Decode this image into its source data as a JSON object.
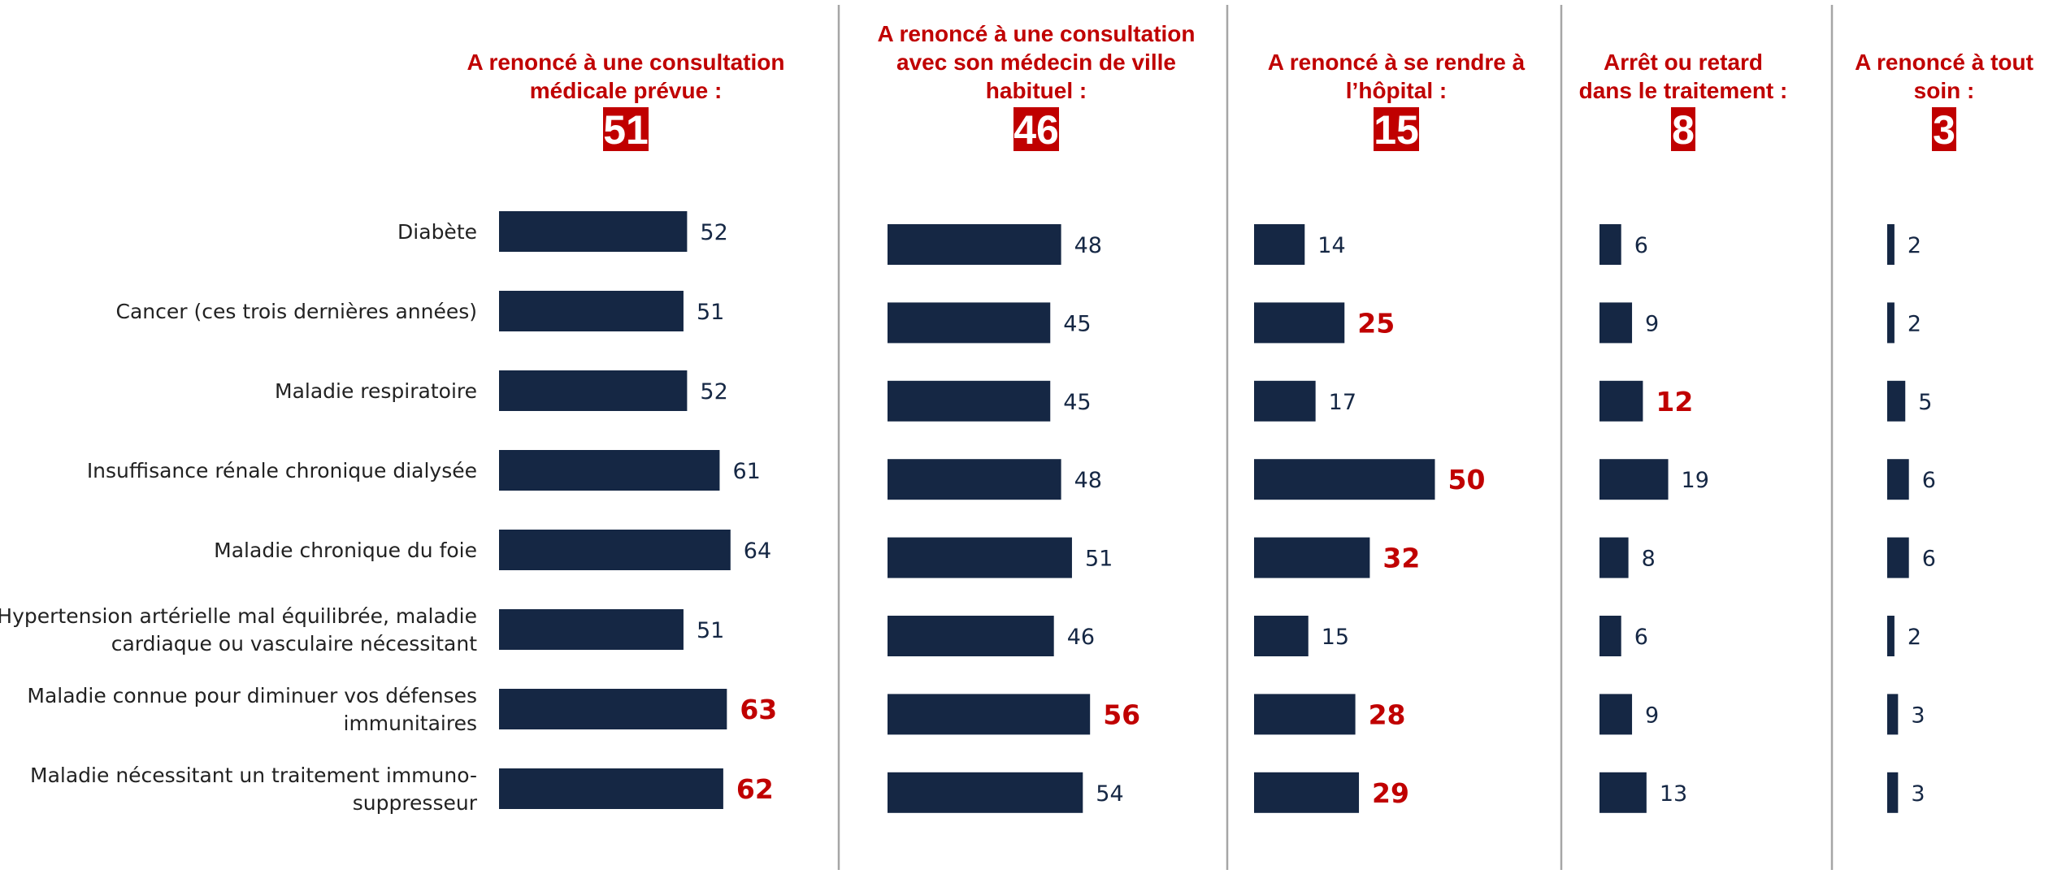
{
  "colors": {
    "bar": "#152744",
    "highlight": "#C00000",
    "value_text": "#152744",
    "category_text": "#222222",
    "divider": "#A6A6A6",
    "badge_text": "#FFFFFF"
  },
  "chart_data": {
    "type": "bar",
    "orientation": "horizontal",
    "categories": [
      [
        "Diabète"
      ],
      [
        "Cancer (ces trois dernières années)"
      ],
      [
        "Maladie respiratoire"
      ],
      [
        "Insuffisance rénale chronique dialysée"
      ],
      [
        "Maladie chronique du foie"
      ],
      [
        "Hypertension artérielle mal équilibrée, maladie",
        "cardiaque ou vasculaire nécessitant"
      ],
      [
        "Maladie connue pour diminuer vos défenses",
        "immunitaires"
      ],
      [
        "Maladie nécessitant un traitement immuno-",
        "suppresseur"
      ]
    ],
    "series": [
      {
        "title_lines": [
          "A renoncé à une consultation",
          "médicale prévue :"
        ],
        "total": "51",
        "values": [
          52,
          51,
          52,
          61,
          64,
          51,
          63,
          62
        ],
        "highlighted": [
          false,
          false,
          false,
          false,
          false,
          false,
          true,
          true
        ]
      },
      {
        "title_lines": [
          "A renoncé à une consultation",
          "avec son médecin de ville",
          "habituel :"
        ],
        "total": "46",
        "values": [
          48,
          45,
          45,
          48,
          51,
          46,
          56,
          54
        ],
        "highlighted": [
          false,
          false,
          false,
          false,
          false,
          false,
          true,
          false
        ]
      },
      {
        "title_lines": [
          "A renoncé à se rendre à",
          "l’hôpital :"
        ],
        "total": "15",
        "values": [
          14,
          25,
          17,
          50,
          32,
          15,
          28,
          29
        ],
        "highlighted": [
          false,
          true,
          false,
          true,
          true,
          false,
          true,
          true
        ]
      },
      {
        "title_lines": [
          "Arrêt ou retard",
          "dans le traitement :"
        ],
        "total": "8",
        "values": [
          6,
          9,
          12,
          19,
          8,
          6,
          9,
          13
        ],
        "highlighted": [
          false,
          false,
          true,
          false,
          false,
          false,
          false,
          false
        ]
      },
      {
        "title_lines": [
          "A renoncé à tout",
          "soin :"
        ],
        "total": "3",
        "values": [
          2,
          2,
          5,
          6,
          6,
          2,
          3,
          3
        ],
        "highlighted": [
          false,
          false,
          false,
          false,
          false,
          false,
          false,
          false
        ]
      }
    ],
    "grid": false,
    "legend": "none"
  }
}
